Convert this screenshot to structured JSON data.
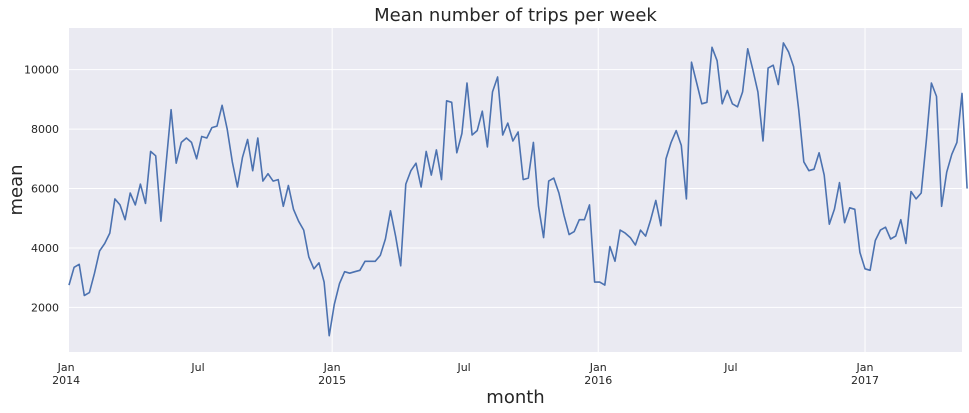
{
  "chart_data": {
    "type": "line",
    "title": "Mean number of trips per week",
    "xlabel": "month",
    "ylabel": "mean",
    "ylim": [
      500,
      11400
    ],
    "xlim": [
      "2014-01-05",
      "2017-05-14"
    ],
    "grid": true,
    "background_color": "#eaeaf2",
    "grid_color": "#ffffff",
    "line_color": "#4c72b0",
    "yticks": [
      {
        "value": 2000,
        "label": "2000"
      },
      {
        "value": 4000,
        "label": "4000"
      },
      {
        "value": 6000,
        "label": "6000"
      },
      {
        "value": 8000,
        "label": "8000"
      },
      {
        "value": 10000,
        "label": "10000"
      }
    ],
    "xticks_major": [
      {
        "date": "2014-01-01",
        "label": "Jan",
        "year": "2014"
      },
      {
        "date": "2015-01-01",
        "label": "Jan",
        "year": "2015"
      },
      {
        "date": "2016-01-01",
        "label": "Jan",
        "year": "2016"
      },
      {
        "date": "2017-01-01",
        "label": "Jan",
        "year": "2017"
      }
    ],
    "xticks_minor": [
      {
        "date": "2014-07-01",
        "label": "Jul"
      },
      {
        "date": "2015-07-01",
        "label": "Jul"
      },
      {
        "date": "2016-07-01",
        "label": "Jul"
      }
    ],
    "series": [
      {
        "x_start": "2014-01-05",
        "x_step_days": 7,
        "values": [
          2750,
          3350,
          3450,
          2400,
          2500,
          3150,
          3900,
          4150,
          4500,
          5650,
          5450,
          4950,
          5850,
          5450,
          6150,
          5500,
          7250,
          7100,
          4900,
          6800,
          8650,
          6850,
          7550,
          7700,
          7550,
          7000,
          7750,
          7700,
          8050,
          8100,
          8800,
          8000,
          6900,
          6050,
          7050,
          7650,
          6600,
          7700,
          6250,
          6500,
          6250,
          6300,
          5400,
          6100,
          5300,
          4900,
          4600,
          3700,
          3300,
          3500,
          2850,
          1050,
          2100,
          2800,
          3200,
          3150,
          3200,
          3250,
          3550,
          3550,
          3550,
          3750,
          4300,
          5250,
          4400,
          3400,
          6150,
          6600,
          6850,
          6050,
          7250,
          6450,
          7300,
          6300,
          8950,
          8900,
          7200,
          7850,
          9550,
          7800,
          7950,
          8600,
          7400,
          9250,
          9750,
          7800,
          8200,
          7600,
          7900,
          6300,
          6350,
          7550,
          5400,
          4350,
          6250,
          6350,
          5850,
          5100,
          4450,
          4550,
          4950,
          4950,
          5450,
          2850,
          2850,
          2750,
          4050,
          3550,
          4600,
          4500,
          4350,
          4100,
          4600,
          4400,
          4950,
          5600,
          4750,
          7000,
          7550,
          7950,
          7450,
          5650,
          10250,
          9550,
          8850,
          8900,
          10750,
          10300,
          8850,
          9300,
          8850,
          8750,
          9250,
          10700,
          10000,
          9250,
          7600,
          10050,
          10150,
          9500,
          10900,
          10600,
          10100,
          8650,
          6900,
          6600,
          6650,
          7200,
          6450,
          4800,
          5300,
          6200,
          4850,
          5350,
          5300,
          3850,
          3300,
          3250,
          4250,
          4600,
          4700,
          4300,
          4400,
          4950,
          4150,
          5900,
          5650,
          5850,
          7600,
          9550,
          9100,
          5400,
          6550,
          7150,
          7550,
          9200,
          6000
        ]
      }
    ]
  }
}
